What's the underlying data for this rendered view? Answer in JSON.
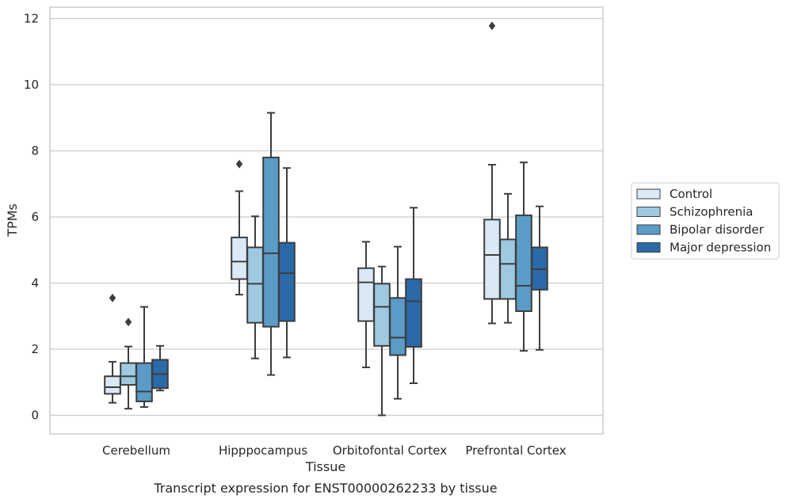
{
  "chart_data": {
    "type": "box",
    "caption": "Transcript expression for ENST00000262233 by tissue",
    "xlabel": "Tissue",
    "ylabel": "TPMs",
    "ylim": [
      -0.55,
      12.35
    ],
    "yticks": [
      "0",
      "2",
      "4",
      "6",
      "8",
      "10",
      "12"
    ],
    "grid": "horizontal",
    "legend_position": "right",
    "categories": [
      "Cerebellum",
      "Hipppocampus",
      "Orbitofontal Cortex",
      "Prefrontal Cortex"
    ],
    "series": [
      {
        "name": "Control",
        "color": "#dbe9f6",
        "boxes": [
          {
            "whislo": 0.38,
            "q1": 0.65,
            "med": 0.85,
            "q3": 1.18,
            "whishi": 1.62,
            "fliers": [
              3.55
            ]
          },
          {
            "whislo": 3.65,
            "q1": 4.12,
            "med": 4.65,
            "q3": 5.38,
            "whishi": 6.78,
            "fliers": [
              7.6
            ]
          },
          {
            "whislo": 1.45,
            "q1": 2.85,
            "med": 4.02,
            "q3": 4.45,
            "whishi": 5.25,
            "fliers": []
          },
          {
            "whislo": 2.78,
            "q1": 3.52,
            "med": 4.85,
            "q3": 5.92,
            "whishi": 7.58,
            "fliers": [
              11.78
            ]
          }
        ]
      },
      {
        "name": "Schizophrenia",
        "color": "#9ecae1",
        "boxes": [
          {
            "whislo": 0.2,
            "q1": 0.92,
            "med": 1.18,
            "q3": 1.58,
            "whishi": 2.08,
            "fliers": [
              2.82
            ]
          },
          {
            "whislo": 1.72,
            "q1": 2.8,
            "med": 3.98,
            "q3": 5.08,
            "whishi": 6.02,
            "fliers": []
          },
          {
            "whislo": 0.0,
            "q1": 2.1,
            "med": 3.28,
            "q3": 3.98,
            "whishi": 4.5,
            "fliers": []
          },
          {
            "whislo": 2.8,
            "q1": 3.52,
            "med": 4.58,
            "q3": 5.32,
            "whishi": 6.7,
            "fliers": []
          }
        ]
      },
      {
        "name": "Bipolar disorder",
        "color": "#5b9bc8",
        "boxes": [
          {
            "whislo": 0.25,
            "q1": 0.42,
            "med": 0.72,
            "q3": 1.58,
            "whishi": 3.28,
            "fliers": []
          },
          {
            "whislo": 1.22,
            "q1": 2.68,
            "med": 4.9,
            "q3": 7.8,
            "whishi": 9.15,
            "fliers": []
          },
          {
            "whislo": 0.5,
            "q1": 1.82,
            "med": 2.35,
            "q3": 3.55,
            "whishi": 5.1,
            "fliers": []
          },
          {
            "whislo": 1.95,
            "q1": 3.15,
            "med": 3.92,
            "q3": 6.05,
            "whishi": 7.65,
            "fliers": []
          }
        ]
      },
      {
        "name": "Major depression",
        "color": "#2a6aa9",
        "boxes": [
          {
            "whislo": 0.75,
            "q1": 0.82,
            "med": 1.25,
            "q3": 1.68,
            "whishi": 2.1,
            "fliers": []
          },
          {
            "whislo": 1.75,
            "q1": 2.85,
            "med": 4.3,
            "q3": 5.22,
            "whishi": 7.48,
            "fliers": []
          },
          {
            "whislo": 0.97,
            "q1": 2.07,
            "med": 3.45,
            "q3": 4.12,
            "whishi": 6.28,
            "fliers": []
          },
          {
            "whislo": 1.98,
            "q1": 3.8,
            "med": 4.42,
            "q3": 5.08,
            "whishi": 6.32,
            "fliers": []
          }
        ]
      }
    ]
  }
}
